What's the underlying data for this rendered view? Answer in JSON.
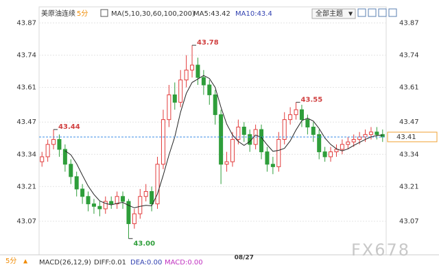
{
  "header": {
    "symbol": "美原油连续",
    "period": "5分",
    "ma_params": "MA(5,10,30,60,100,200)",
    "ma5": "MA5:43.42",
    "ma10": "MA10:43.4",
    "theme_button": "全部主题"
  },
  "footer": {
    "period": "5分",
    "macd_params": "MACD(26,12,9)",
    "diff": "DIFF:0.01",
    "dea": "DEA:0.00",
    "macd": "MACD:0.00"
  },
  "watermark": "FX678",
  "chart_data": {
    "type": "candlestick",
    "categories": [
      null,
      null,
      null,
      null,
      null,
      null,
      null,
      null,
      null,
      null,
      null,
      null,
      null,
      null,
      null,
      null,
      null,
      null,
      null,
      null,
      null,
      null,
      null,
      null,
      null,
      null,
      null,
      null,
      null,
      null,
      null,
      null,
      null,
      null,
      null,
      "08/27",
      null,
      null,
      null,
      null,
      null,
      null,
      null,
      null,
      null,
      null,
      null,
      null,
      null,
      null,
      null,
      null,
      null,
      null,
      null,
      null,
      null,
      null,
      null,
      null
    ],
    "open": [
      43.31,
      43.33,
      43.38,
      43.4,
      43.36,
      43.3,
      43.25,
      43.2,
      43.17,
      43.14,
      43.13,
      43.12,
      43.15,
      43.14,
      43.17,
      43.15,
      43.06,
      43.1,
      43.17,
      43.19,
      43.14,
      43.3,
      43.48,
      43.58,
      43.55,
      43.64,
      43.68,
      43.7,
      43.65,
      43.62,
      43.58,
      43.5,
      43.3,
      43.31,
      43.4,
      43.45,
      43.42,
      43.38,
      43.44,
      43.35,
      43.3,
      43.29,
      43.4,
      43.48,
      43.5,
      43.52,
      43.48,
      43.45,
      43.42,
      43.35,
      43.33,
      43.35,
      43.36,
      43.38,
      43.39,
      43.4,
      43.41,
      43.42,
      43.43,
      43.42
    ],
    "high": [
      43.35,
      43.4,
      43.44,
      43.42,
      43.38,
      43.32,
      43.27,
      43.22,
      43.19,
      43.16,
      43.15,
      43.17,
      43.17,
      43.19,
      43.19,
      43.16,
      43.12,
      43.2,
      43.22,
      43.21,
      43.33,
      43.52,
      43.62,
      43.63,
      43.68,
      43.74,
      43.78,
      43.73,
      43.68,
      43.64,
      43.6,
      43.52,
      43.35,
      43.43,
      43.48,
      43.47,
      43.44,
      43.46,
      43.46,
      43.37,
      43.33,
      43.43,
      43.51,
      43.53,
      43.55,
      43.54,
      43.5,
      43.47,
      43.44,
      43.37,
      43.37,
      43.38,
      43.4,
      43.41,
      43.42,
      43.43,
      43.44,
      43.45,
      43.45,
      43.44
    ],
    "low": [
      43.29,
      43.31,
      43.36,
      43.33,
      43.27,
      43.22,
      43.17,
      43.14,
      43.11,
      43.1,
      43.09,
      43.1,
      43.12,
      43.12,
      43.12,
      43.0,
      43.04,
      43.08,
      43.15,
      43.11,
      43.12,
      43.28,
      43.45,
      43.52,
      43.53,
      43.61,
      43.65,
      43.62,
      43.58,
      43.54,
      43.46,
      43.22,
      43.27,
      43.29,
      43.38,
      43.39,
      43.35,
      43.36,
      43.32,
      43.27,
      43.26,
      43.27,
      43.38,
      43.46,
      43.48,
      43.45,
      43.42,
      43.39,
      43.32,
      43.31,
      43.31,
      43.33,
      43.34,
      43.36,
      43.37,
      43.38,
      43.39,
      43.4,
      43.4,
      43.39
    ],
    "close": [
      43.33,
      43.38,
      43.4,
      43.36,
      43.3,
      43.25,
      43.2,
      43.17,
      43.14,
      43.13,
      43.12,
      43.15,
      43.14,
      43.17,
      43.15,
      43.06,
      43.1,
      43.17,
      43.19,
      43.14,
      43.3,
      43.48,
      43.58,
      43.55,
      43.64,
      43.68,
      43.7,
      43.65,
      43.62,
      43.58,
      43.5,
      43.3,
      43.31,
      43.4,
      43.45,
      43.42,
      43.38,
      43.44,
      43.35,
      43.3,
      43.29,
      43.4,
      43.48,
      43.5,
      43.52,
      43.48,
      43.45,
      43.42,
      43.35,
      43.33,
      43.35,
      43.36,
      43.38,
      43.39,
      43.4,
      43.41,
      43.42,
      43.43,
      43.42,
      43.41
    ],
    "up_color": "#e23b3b",
    "down_color": "#2e9e3a",
    "ma_lines": [
      {
        "color": "#222222",
        "values": [
          null,
          null,
          null,
          null,
          43.354,
          43.338,
          43.302,
          43.256,
          43.212,
          43.178,
          43.152,
          43.142,
          43.136,
          43.142,
          43.146,
          43.134,
          43.124,
          43.13,
          43.134,
          43.132,
          43.18,
          43.256,
          43.338,
          43.41,
          43.51,
          43.586,
          43.63,
          43.644,
          43.658,
          43.646,
          43.61,
          43.53,
          43.462,
          43.418,
          43.392,
          43.376,
          43.392,
          43.418,
          43.408,
          43.378,
          43.352,
          43.356,
          43.364,
          43.394,
          43.438,
          43.476,
          43.486,
          43.474,
          43.444,
          43.406,
          43.38,
          43.362,
          43.354,
          43.362,
          43.376,
          43.388,
          43.4,
          43.41,
          43.416,
          43.418
        ]
      }
    ],
    "high_labels": [
      43.44,
      43.78,
      43.55
    ],
    "low_labels": [
      {
        "value": 43,
        "label": "43.00"
      }
    ],
    "last_price": 43.41,
    "ylim": [
      42.94,
      43.935
    ],
    "yticks": [
      43.87,
      43.74,
      43.61,
      43.47,
      43.34,
      43.21,
      43.07
    ],
    "grid": true
  }
}
